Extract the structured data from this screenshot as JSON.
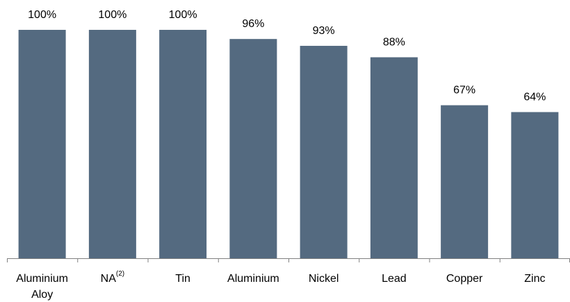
{
  "chart_data": {
    "type": "bar",
    "title": "",
    "xlabel": "",
    "ylabel": "",
    "categories": [
      {
        "lines": [
          "Aluminium",
          "Aloy"
        ],
        "sup": ""
      },
      {
        "lines": [
          "NA"
        ],
        "sup": "(2)"
      },
      {
        "lines": [
          "Tin"
        ],
        "sup": ""
      },
      {
        "lines": [
          "Aluminium"
        ],
        "sup": ""
      },
      {
        "lines": [
          "Nickel"
        ],
        "sup": ""
      },
      {
        "lines": [
          "Lead"
        ],
        "sup": ""
      },
      {
        "lines": [
          "Copper"
        ],
        "sup": ""
      },
      {
        "lines": [
          "Zinc"
        ],
        "sup": ""
      }
    ],
    "values": [
      100,
      100,
      100,
      96,
      93,
      88,
      67,
      64
    ],
    "value_labels": [
      "100%",
      "100%",
      "100%",
      "96%",
      "93%",
      "88%",
      "67%",
      "64%"
    ],
    "ylim": [
      0,
      100
    ],
    "grid": false,
    "bar_color": "#546a80",
    "axis_color": "#808080"
  }
}
